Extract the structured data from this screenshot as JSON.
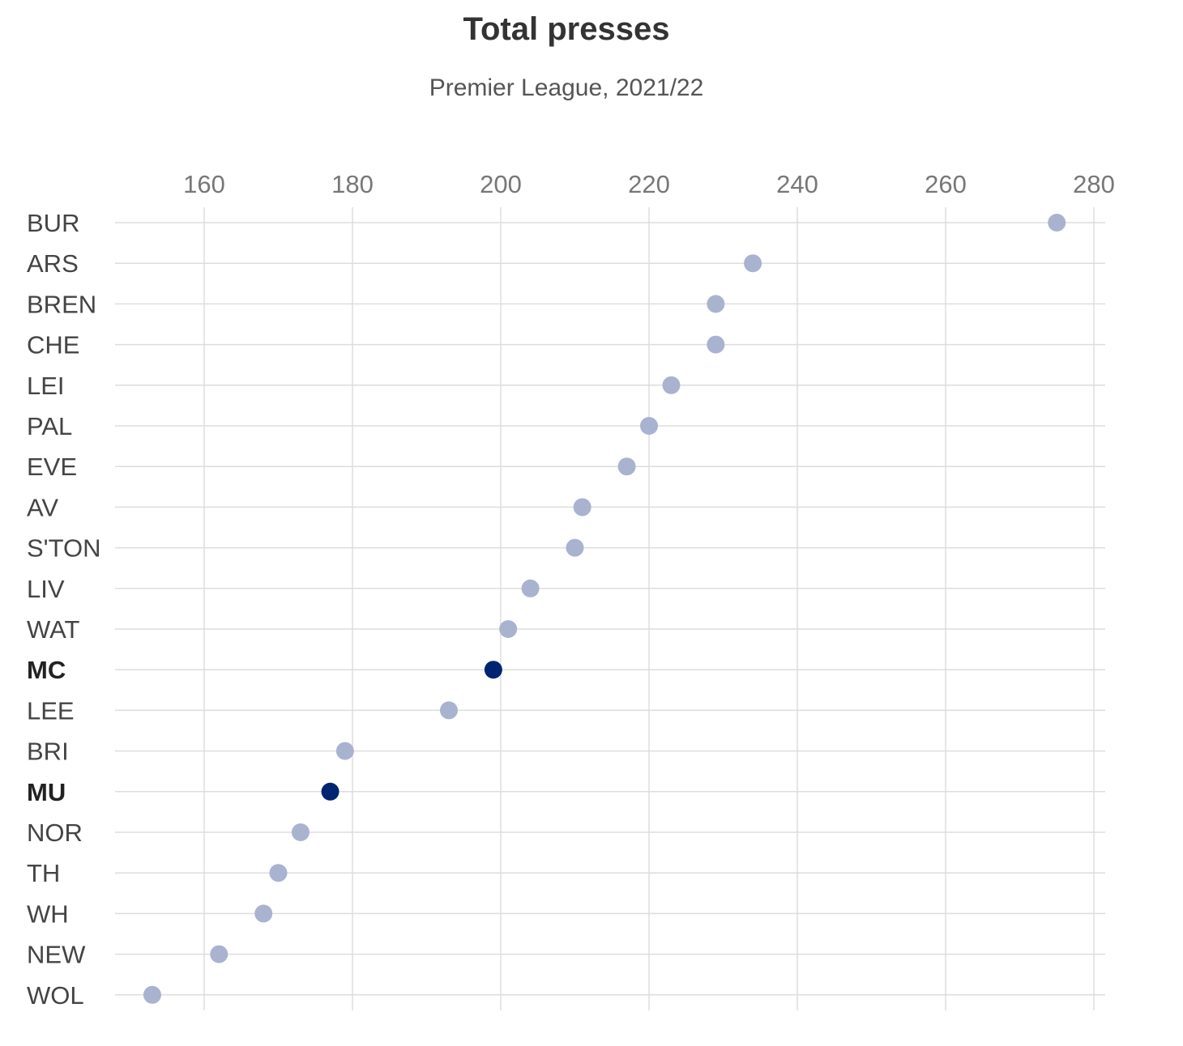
{
  "chart_data": {
    "type": "scatter",
    "title": "Total presses",
    "subtitle": "Premier League, 2021/22",
    "x_axis": {
      "ticks": [
        160,
        180,
        200,
        220,
        240,
        260,
        280
      ],
      "range": [
        148,
        280
      ],
      "position": "top",
      "grid": true
    },
    "categories": [
      "BUR",
      "ARS",
      "BREN",
      "CHE",
      "LEI",
      "PAL",
      "EVE",
      "AV",
      "S'TON",
      "LIV",
      "WAT",
      "MC",
      "LEE",
      "BRI",
      "MU",
      "NOR",
      "TH",
      "WH",
      "NEW",
      "WOL"
    ],
    "values": [
      275,
      234,
      229,
      229,
      223,
      220,
      217,
      211,
      210,
      204,
      201,
      199,
      193,
      179,
      177,
      173,
      170,
      168,
      162,
      153
    ],
    "highlighted": [
      "MC",
      "MU"
    ],
    "colors": {
      "default_point": "#a9b3d0",
      "highlight_point": "#002570",
      "grid": "#dddddd"
    }
  }
}
